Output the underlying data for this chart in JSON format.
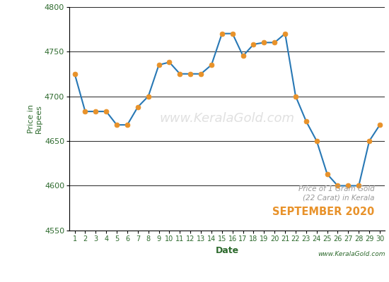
{
  "dates": [
    1,
    2,
    3,
    4,
    5,
    6,
    7,
    8,
    9,
    10,
    11,
    12,
    13,
    14,
    15,
    16,
    17,
    18,
    19,
    20,
    21,
    22,
    23,
    24,
    25,
    26,
    27,
    28,
    29,
    30
  ],
  "prices": [
    4725,
    4683,
    4683,
    4683,
    4668,
    4668,
    4688,
    4700,
    4735,
    4738,
    4725,
    4725,
    4725,
    4735,
    4770,
    4770,
    4745,
    4758,
    4760,
    4760,
    4770,
    4700,
    4672,
    4650,
    4613,
    4600,
    4600,
    4600,
    4650,
    4668
  ],
  "line_color": "#2878b5",
  "marker_color": "#E8922A",
  "ylabel": "Price in\nRupees",
  "xlabel": "Date",
  "ylim": [
    4550,
    4800
  ],
  "yticks": [
    4550,
    4600,
    4650,
    4700,
    4750,
    4800
  ],
  "title_line1": "Price of 1 Gram Gold",
  "title_line2": "(22 Carat) in Kerala",
  "title_line3": "SEPTEMBER 2020",
  "title_color1": "#999999",
  "title_color3": "#E8922A",
  "watermark": "www.KeralaGold.com",
  "bg_color": "#ffffff",
  "grid_color": "#000000",
  "tick_label_color": "#2D6A2D",
  "axis_label_color": "#2D6A2D"
}
